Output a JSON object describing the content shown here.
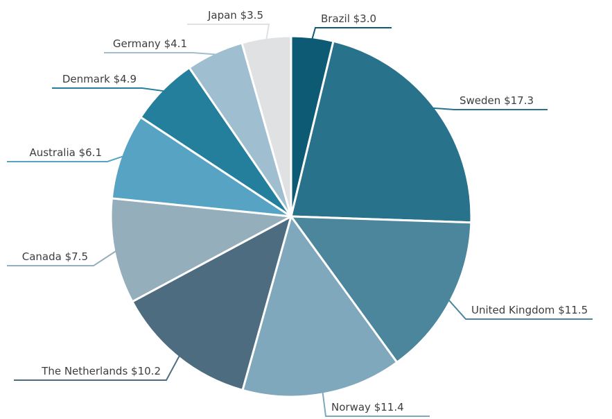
{
  "chart_data": {
    "type": "pie",
    "categories": [
      "Brazil",
      "Sweden",
      "United Kingdom",
      "Norway",
      "The Netherlands",
      "Canada",
      "Australia",
      "Denmark",
      "Germany",
      "Japan"
    ],
    "values": [
      3.0,
      17.3,
      11.5,
      11.4,
      10.2,
      7.5,
      6.1,
      4.9,
      4.1,
      3.5
    ],
    "value_labels": [
      "$3.0",
      "$17.3",
      "$11.5",
      "$11.4",
      "$10.2",
      "$7.5",
      "$6.1",
      "$4.9",
      "$4.1",
      "$3.5"
    ],
    "colors": [
      "#0d5a75",
      "#29728c",
      "#4b869d",
      "#7fa8bd",
      "#4d6c80",
      "#94aebb",
      "#56a3c3",
      "#237f9c",
      "#9fbfd0",
      "#dfe1e3"
    ]
  }
}
